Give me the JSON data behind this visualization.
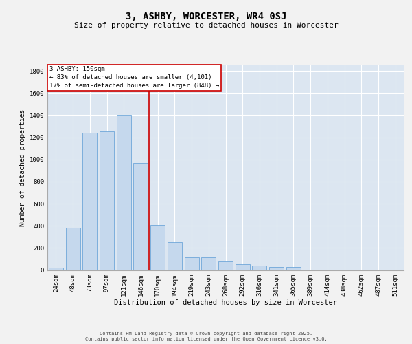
{
  "title": "3, ASHBY, WORCESTER, WR4 0SJ",
  "subtitle": "Size of property relative to detached houses in Worcester",
  "xlabel": "Distribution of detached houses by size in Worcester",
  "ylabel": "Number of detached properties",
  "categories": [
    "24sqm",
    "48sqm",
    "73sqm",
    "97sqm",
    "121sqm",
    "146sqm",
    "170sqm",
    "194sqm",
    "219sqm",
    "243sqm",
    "268sqm",
    "292sqm",
    "316sqm",
    "341sqm",
    "365sqm",
    "389sqm",
    "414sqm",
    "438sqm",
    "462sqm",
    "487sqm",
    "511sqm"
  ],
  "values": [
    20,
    380,
    1240,
    1250,
    1400,
    970,
    410,
    250,
    115,
    115,
    80,
    50,
    40,
    30,
    25,
    5,
    5,
    3,
    1,
    0,
    0
  ],
  "bar_color": "#c5d8ed",
  "bar_edge_color": "#5b9bd5",
  "grid_color": "#ffffff",
  "bg_color": "#dce6f1",
  "annotation_box_color": "#ffffff",
  "annotation_box_edge": "#cc0000",
  "vline_color": "#cc0000",
  "fig_bg_color": "#f2f2f2",
  "ylim": [
    0,
    1850
  ],
  "yticks": [
    0,
    200,
    400,
    600,
    800,
    1000,
    1200,
    1400,
    1600,
    1800
  ],
  "title_fontsize": 10,
  "subtitle_fontsize": 8,
  "tick_fontsize": 6.5,
  "ylabel_fontsize": 7,
  "xlabel_fontsize": 7.5,
  "annotation_fontsize": 6.5,
  "footer_fontsize": 5,
  "property_line_label": "3 ASHBY: 150sqm",
  "annotation_line1": "← 83% of detached houses are smaller (4,101)",
  "annotation_line2": "17% of semi-detached houses are larger (848) →",
  "footer_line1": "Contains HM Land Registry data © Crown copyright and database right 2025.",
  "footer_line2": "Contains public sector information licensed under the Open Government Licence v3.0.",
  "vline_x_index": 5.5
}
